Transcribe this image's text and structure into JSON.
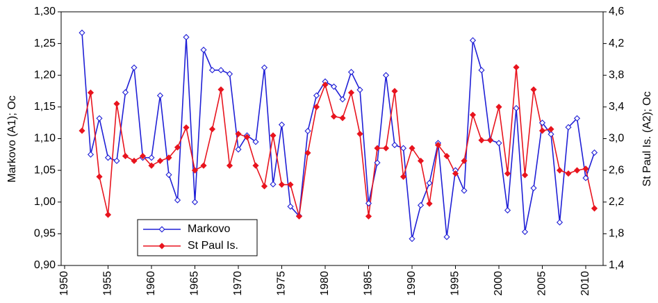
{
  "chart_data": {
    "type": "line",
    "ylabel": "Markovo (A1); Oc",
    "y2label": "St Paul Is. (A2); Oc",
    "x": [
      1952,
      1953,
      1954,
      1955,
      1956,
      1957,
      1958,
      1959,
      1960,
      1961,
      1962,
      1963,
      1964,
      1965,
      1966,
      1967,
      1968,
      1969,
      1970,
      1971,
      1972,
      1973,
      1974,
      1975,
      1976,
      1977,
      1978,
      1979,
      1980,
      1981,
      1982,
      1983,
      1984,
      1985,
      1986,
      1987,
      1988,
      1989,
      1990,
      1991,
      1992,
      1993,
      1994,
      1995,
      1996,
      1997,
      1998,
      1999,
      2000,
      2001,
      2002,
      2003,
      2004,
      2005,
      2006,
      2007,
      2008,
      2009,
      2010,
      2011
    ],
    "xlim": [
      1949.6,
      2012
    ],
    "xticks": [
      1950,
      1955,
      1960,
      1965,
      1970,
      1975,
      1980,
      1985,
      1990,
      1995,
      2000,
      2005,
      2010
    ],
    "ylim": [
      0.9,
      1.3
    ],
    "yticks": [
      {
        "value": 0.9,
        "label": "0,90"
      },
      {
        "value": 0.95,
        "label": "0,95"
      },
      {
        "value": 1.0,
        "label": "1,00"
      },
      {
        "value": 1.05,
        "label": "1,05"
      },
      {
        "value": 1.1,
        "label": "1,10"
      },
      {
        "value": 1.15,
        "label": "1,15"
      },
      {
        "value": 1.2,
        "label": "1,20"
      },
      {
        "value": 1.25,
        "label": "1,25"
      },
      {
        "value": 1.3,
        "label": "1,30"
      }
    ],
    "y2lim": [
      1.4,
      4.6
    ],
    "y2ticks": [
      {
        "value": 1.4,
        "label": "1,4"
      },
      {
        "value": 1.8,
        "label": "1,8"
      },
      {
        "value": 2.2,
        "label": "2,2"
      },
      {
        "value": 2.6,
        "label": "2,6"
      },
      {
        "value": 3.0,
        "label": "3,0"
      },
      {
        "value": 3.4,
        "label": "3,4"
      },
      {
        "value": 3.8,
        "label": "3,8"
      },
      {
        "value": 4.2,
        "label": "4,2"
      },
      {
        "value": 4.6,
        "label": "4,6"
      }
    ],
    "legend": "lower-left",
    "series": [
      {
        "name": "Markovo",
        "color": "#1f1fd6",
        "marker": "hollow-diamond",
        "values": [
          1.267,
          1.075,
          1.132,
          1.07,
          1.065,
          1.173,
          1.212,
          1.07,
          1.07,
          1.168,
          1.043,
          1.003,
          1.26,
          1.0,
          1.24,
          1.208,
          1.208,
          1.202,
          1.083,
          1.105,
          1.095,
          1.212,
          1.028,
          1.122,
          0.993,
          0.978,
          1.112,
          1.168,
          1.19,
          1.182,
          1.162,
          1.205,
          1.177,
          0.998,
          1.062,
          1.2,
          1.09,
          1.085,
          0.942,
          0.995,
          1.03,
          1.093,
          0.945,
          1.05,
          1.018,
          1.255,
          1.208,
          1.098,
          1.093,
          0.987,
          1.148,
          0.953,
          1.022,
          1.125,
          1.107,
          0.968,
          1.118,
          1.132,
          1.038,
          1.078
        ]
      },
      {
        "name": "St Paul Is.",
        "color": "#e8141e",
        "marker": "filled-diamond",
        "axis": "y2",
        "values": [
          3.1,
          3.58,
          2.52,
          2.04,
          3.44,
          2.78,
          2.72,
          2.78,
          2.66,
          2.72,
          2.76,
          2.89,
          3.14,
          2.6,
          2.66,
          3.12,
          3.62,
          2.66,
          3.06,
          3.02,
          2.66,
          2.4,
          3.04,
          2.42,
          2.42,
          2.02,
          2.82,
          3.4,
          3.68,
          3.28,
          3.26,
          3.58,
          3.06,
          2.02,
          2.88,
          2.88,
          3.6,
          2.52,
          2.88,
          2.72,
          2.18,
          2.92,
          2.78,
          2.56,
          2.72,
          3.3,
          2.98,
          2.98,
          3.4,
          2.56,
          3.9,
          2.54,
          3.62,
          3.1,
          3.12,
          2.6,
          2.56,
          2.6,
          2.62,
          2.12
        ]
      }
    ]
  }
}
